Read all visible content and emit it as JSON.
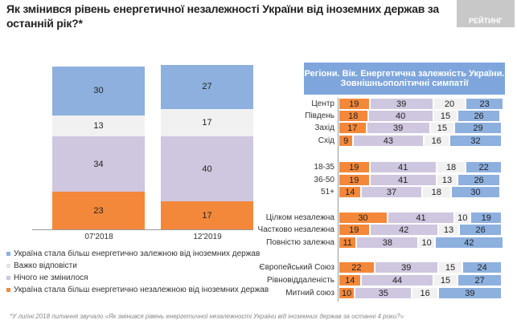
{
  "title": "Як змінився рівень енергетичної незалежності України від іноземних держав за останній рік?*",
  "logo": "РЕЙТИНГ",
  "footnote": "*У липні 2018 питання звучало «Як змінився рівень енергетичної незалежності України від іноземних держав за останні 4 роки?»",
  "chart_data": [
    {
      "type": "bar",
      "stacked": true,
      "orientation": "vertical",
      "categories": [
        "07'2018",
        "12'2019"
      ],
      "series": [
        {
          "name": "Україна стала більш енергетично незалежною від іноземних держав",
          "color": "#f4883a",
          "values": [
            23,
            17
          ]
        },
        {
          "name": "Нічого не змінилося",
          "color": "#cfc6df",
          "values": [
            34,
            40
          ]
        },
        {
          "name": "Важко відповісти",
          "color": "#f1f1f1",
          "values": [
            13,
            17
          ]
        },
        {
          "name": "Україна стала більш енергетично залежною від іноземних держав",
          "color": "#8db0de",
          "values": [
            30,
            27
          ]
        }
      ],
      "legend_order": [
        3,
        2,
        1,
        0
      ],
      "legend": "bottom-left"
    },
    {
      "type": "bar",
      "stacked": true,
      "orientation": "horizontal",
      "title": "Регіони. Вік. Енергетична залежність України. Зовнішньополітичні симпатії",
      "categories": [
        "Центр",
        "Південь",
        "Захід",
        "Схід",
        "",
        "18-35",
        "36-50",
        "51+",
        "",
        "Цілком незалежна",
        "Частково незалежна",
        "Повністю залежна",
        "",
        "Європейський Союз",
        "Рівновіддаленість",
        "Митний союз"
      ],
      "series": [
        {
          "color": "#f4883a",
          "values": [
            19,
            18,
            17,
            9,
            null,
            19,
            19,
            14,
            null,
            30,
            19,
            11,
            null,
            22,
            14,
            10
          ]
        },
        {
          "color": "#cfc6df",
          "values": [
            39,
            40,
            39,
            43,
            null,
            41,
            41,
            37,
            null,
            41,
            42,
            38,
            null,
            39,
            44,
            35
          ]
        },
        {
          "color": "#f1f1f1",
          "values": [
            20,
            15,
            15,
            16,
            null,
            18,
            13,
            18,
            null,
            10,
            13,
            10,
            null,
            15,
            15,
            16
          ]
        },
        {
          "color": "#8db0de",
          "values": [
            23,
            26,
            29,
            32,
            null,
            22,
            26,
            30,
            null,
            19,
            26,
            42,
            null,
            24,
            27,
            39
          ]
        }
      ]
    }
  ]
}
